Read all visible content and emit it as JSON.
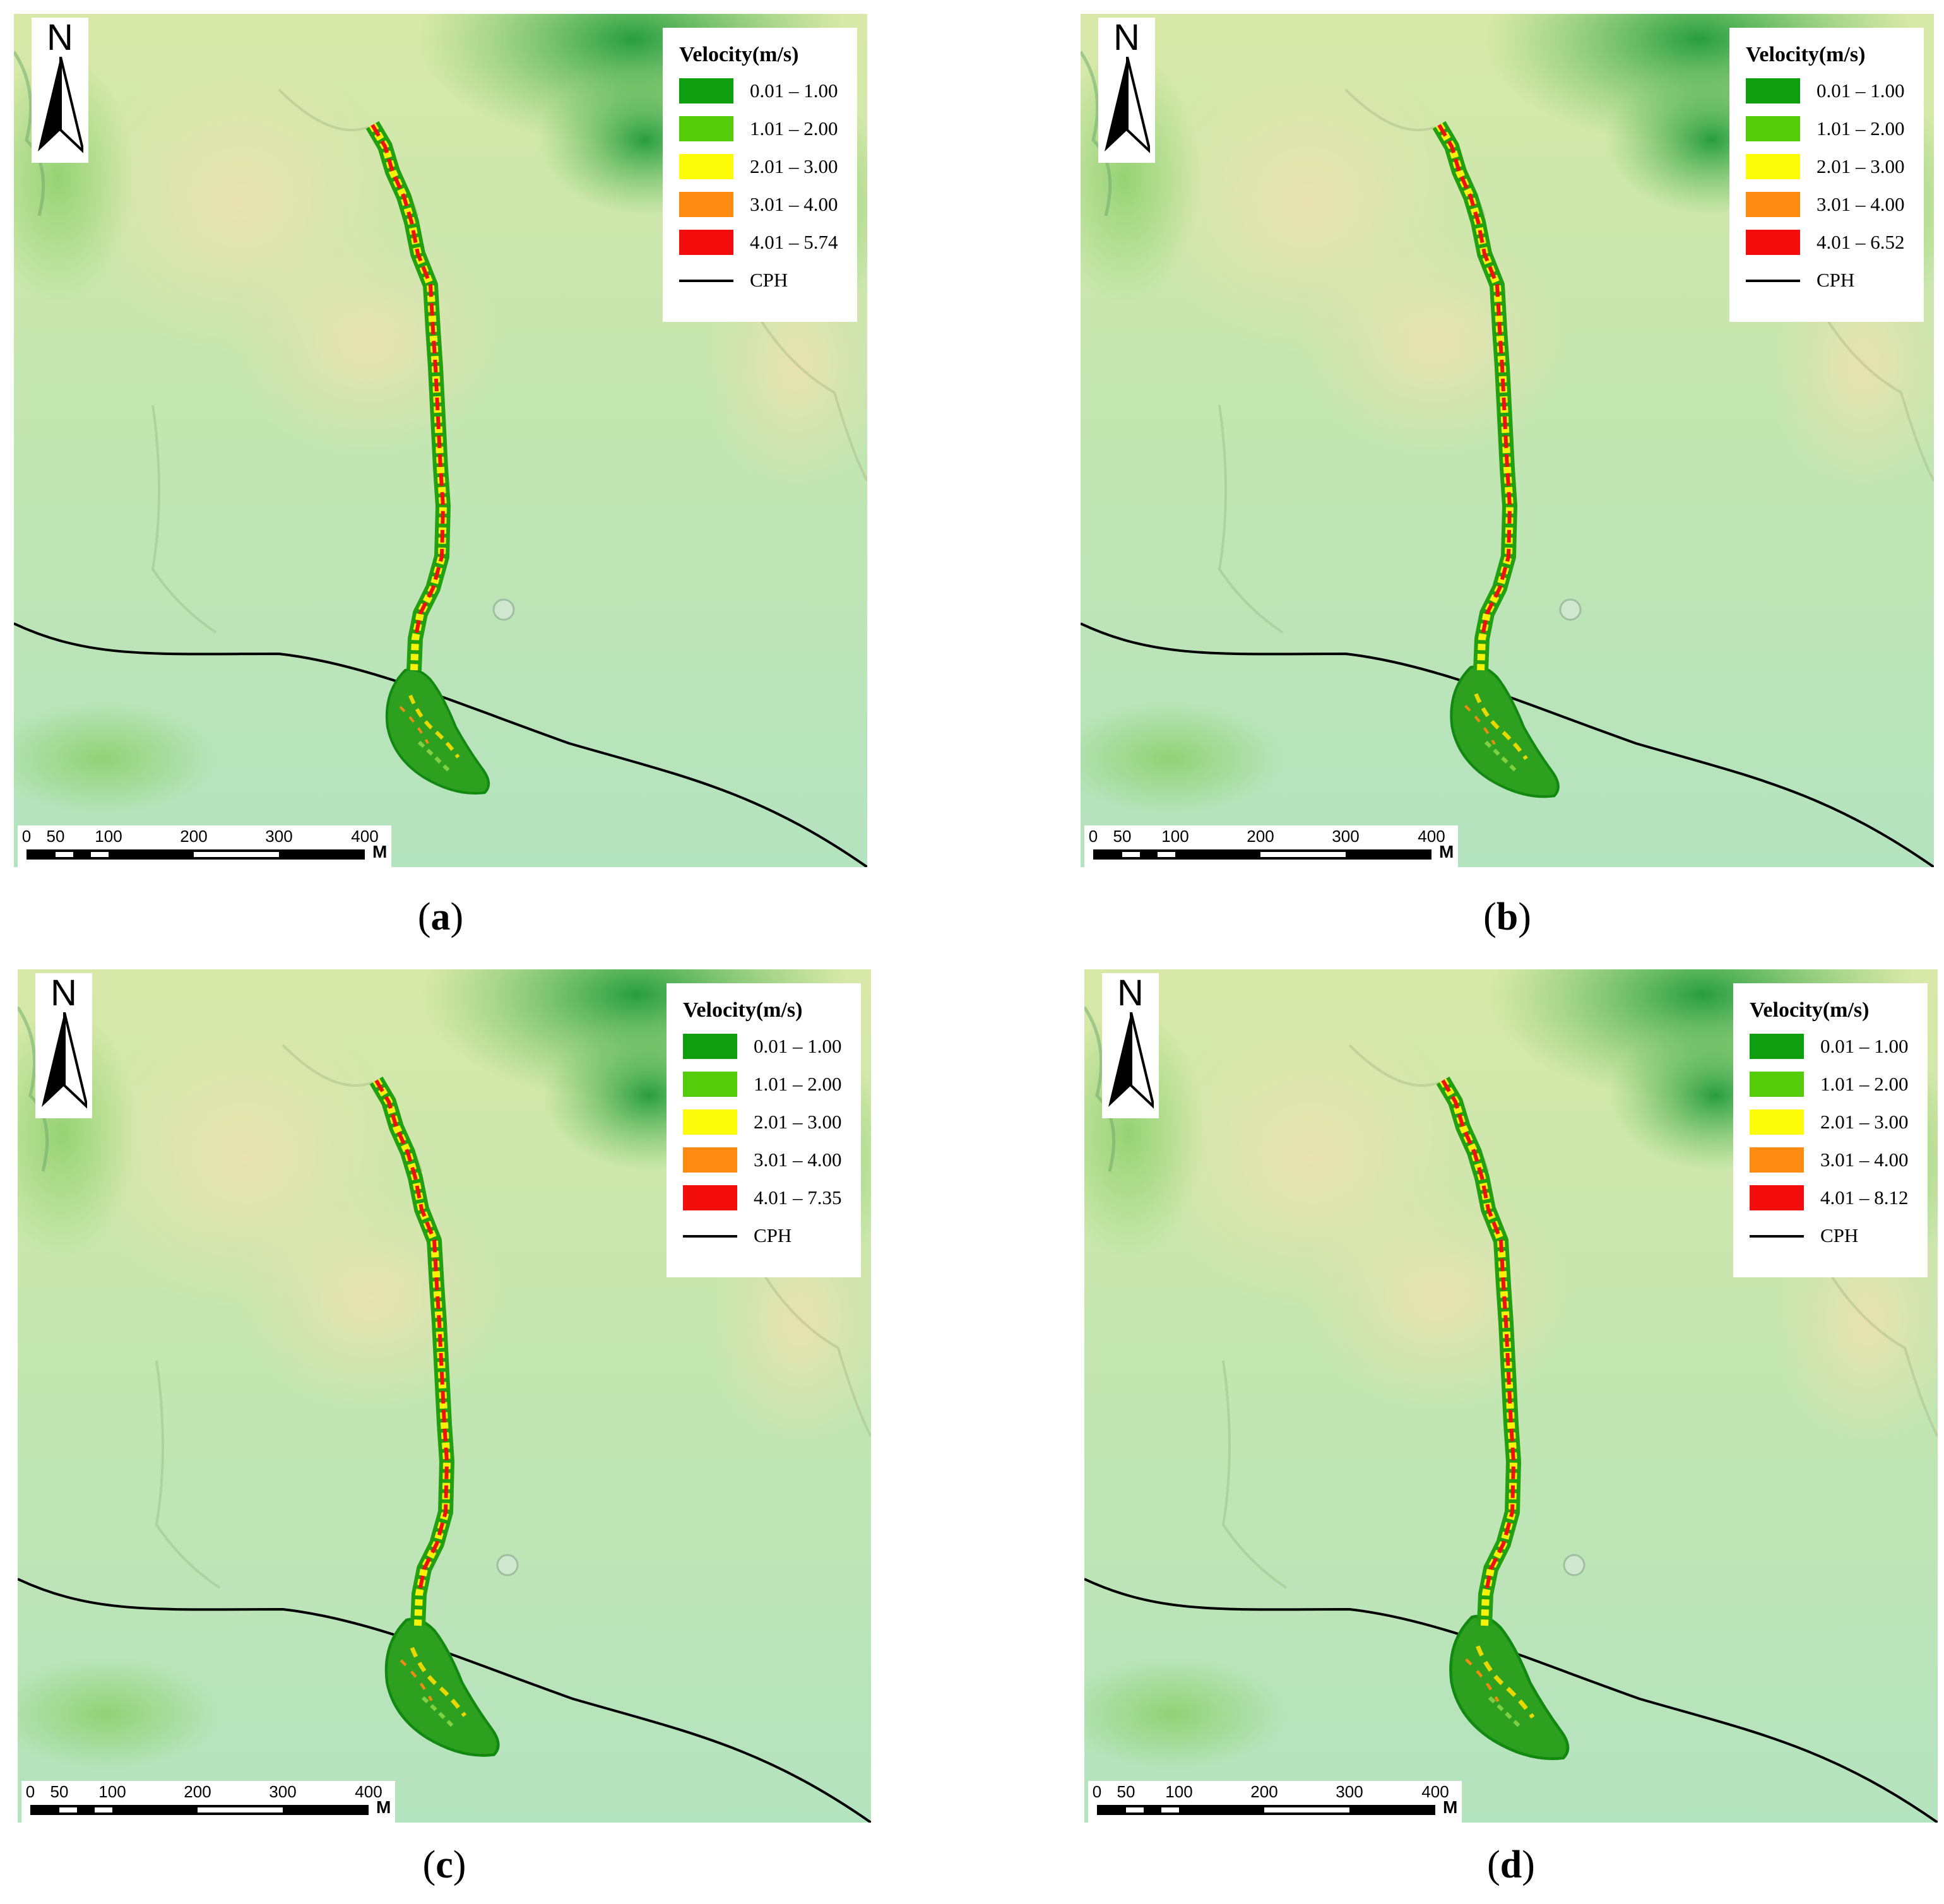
{
  "figure": {
    "legend_title": "Velocity(m/s)",
    "legend_classes": [
      {
        "color": "#0e9e0e",
        "label": "0.01 – 1.00"
      },
      {
        "color": "#55cc0a",
        "label": "1.01 – 2.00"
      },
      {
        "color": "#fbfb0a",
        "label": "2.01 – 3.00"
      },
      {
        "color": "#fd8b12",
        "label": "3.01 – 4.00"
      },
      {
        "color": "#f40d0d",
        "label": "4.01 – {max}"
      }
    ],
    "line_legend_label": "CPH",
    "north_label": "N",
    "scale_ticks": [
      "0",
      "50",
      "100",
      "200",
      "300",
      "400"
    ],
    "scale_unit": "M"
  },
  "panels": [
    {
      "id": "a",
      "caption": "a",
      "max_velocity": "5.74"
    },
    {
      "id": "b",
      "caption": "b",
      "max_velocity": "6.52"
    },
    {
      "id": "c",
      "caption": "c",
      "max_velocity": "7.35"
    },
    {
      "id": "d",
      "caption": "d",
      "max_velocity": "8.12"
    }
  ]
}
